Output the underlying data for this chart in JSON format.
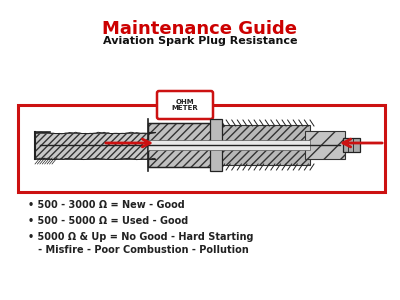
{
  "title": "Maintenance Guide",
  "subtitle": "Aviation Spark Plug Resistance",
  "title_color": "#cc0000",
  "subtitle_color": "#111111",
  "ohm_meter_label": "OHM\nMETER",
  "bullet_lines": [
    "• 500 - 3000 Ω = New - Good",
    "• 500 - 5000 Ω = Used - Good",
    "• 5000 Ω & Up = No Good - Hard Starting",
    "   - Misfire - Poor Combustion - Pollution"
  ],
  "background_color": "#ffffff",
  "red_color": "#cc1111",
  "dark_color": "#222222",
  "hatch_color": "#444444"
}
